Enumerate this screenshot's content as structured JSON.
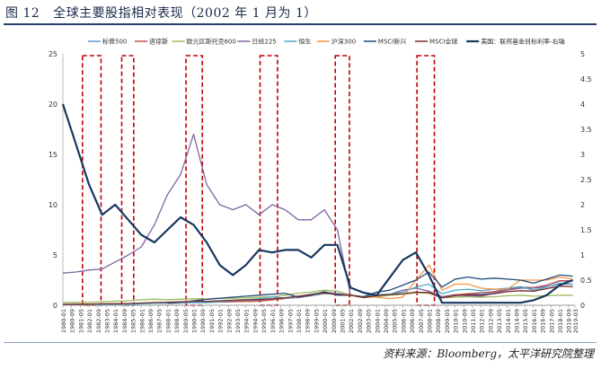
{
  "header": {
    "figure_no": "图 12",
    "title": "全球主要股指相对表现（2002 年 1 月为 1）"
  },
  "source": "资料来源：Bloomberg，太平洋研究院整理",
  "chart_data": {
    "type": "line",
    "title": "全球主要股指相对表现（2002 年 1 月为 1）",
    "x": [
      "1980-01",
      "1981-01",
      "1982-01",
      "1983-01",
      "1984-01",
      "1985-01",
      "1986-01",
      "1987-01",
      "1988-01",
      "1989-01",
      "1990-01",
      "1991-01",
      "1992-01",
      "1993-01",
      "1994-01",
      "1995-01",
      "1996-01",
      "1997-01",
      "1998-01",
      "1999-01",
      "2000-01",
      "2001-01",
      "2002-01",
      "2003-01",
      "2004-01",
      "2005-01",
      "2006-01",
      "2007-01",
      "2008-01",
      "2009-01",
      "2010-01",
      "2011-01",
      "2012-01",
      "2013-01",
      "2014-01",
      "2015-01",
      "2016-01",
      "2017-01",
      "2018-01",
      "2019-01"
    ],
    "x_tick_labels": [
      "1980-01",
      "1980-09",
      "1981-05",
      "1982-01",
      "1982-09",
      "1983-05",
      "1984-01",
      "1984-09",
      "1985-05",
      "1986-01",
      "1986-09",
      "1987-05",
      "1988-01",
      "1988-09",
      "1989-05",
      "1990-01",
      "1990-09",
      "1991-05",
      "1992-01",
      "1992-09",
      "1993-05",
      "1994-01",
      "1994-09",
      "1995-05",
      "1996-01",
      "1996-09",
      "1997-05",
      "1998-01",
      "1998-09",
      "1999-05",
      "2000-01",
      "2000-09",
      "2001-05",
      "2002-01",
      "2002-09",
      "2003-05",
      "2004-01",
      "2004-09",
      "2005-05",
      "2006-01",
      "2006-09",
      "2007-05",
      "2008-01",
      "2008-09",
      "2009-05",
      "2010-01",
      "2010-09",
      "2011-05",
      "2012-01",
      "2012-09",
      "2013-05",
      "2014-01",
      "2014-09",
      "2015-05",
      "2016-01",
      "2016-09",
      "2017-05",
      "2018-01",
      "2018-09",
      "2019-03"
    ],
    "ylim": [
      0,
      25
    ],
    "y_ticks": [
      0,
      5,
      10,
      15,
      20,
      25
    ],
    "y2lim": [
      0,
      5
    ],
    "y2_ticks": [
      0,
      0.5,
      1,
      1.5,
      2,
      2.5,
      3,
      3.5,
      4,
      4.5,
      5
    ],
    "grid": false,
    "legend_position": "top",
    "series": [
      {
        "name": "标普500",
        "color": "#5b9bd5",
        "axis": "left",
        "values": [
          0.09,
          0.1,
          0.1,
          0.13,
          0.13,
          0.16,
          0.2,
          0.24,
          0.24,
          0.27,
          0.3,
          0.3,
          0.38,
          0.4,
          0.42,
          0.42,
          0.56,
          0.68,
          0.88,
          1.1,
          1.3,
          1.17,
          1.0,
          0.78,
          1.0,
          1.05,
          1.1,
          1.24,
          1.25,
          0.75,
          1.0,
          1.1,
          1.1,
          1.3,
          1.6,
          1.8,
          1.75,
          2.0,
          2.4,
          2.4
        ]
      },
      {
        "name": "道琼斯",
        "color": "#c0504d",
        "axis": "left",
        "values": [
          0.08,
          0.09,
          0.09,
          0.11,
          0.12,
          0.12,
          0.15,
          0.19,
          0.2,
          0.22,
          0.27,
          0.28,
          0.32,
          0.35,
          0.38,
          0.4,
          0.53,
          0.67,
          0.78,
          0.95,
          1.15,
          1.07,
          1.0,
          0.83,
          1.05,
          1.07,
          1.1,
          1.25,
          1.3,
          0.85,
          1.05,
          1.15,
          1.25,
          1.35,
          1.65,
          1.75,
          1.75,
          2.0,
          2.45,
          2.45
        ]
      },
      {
        "name": "欧元区斯托克600",
        "color": "#9bbb59",
        "axis": "left",
        "values": [
          0.3,
          0.3,
          0.3,
          0.35,
          0.4,
          0.45,
          0.55,
          0.6,
          0.55,
          0.6,
          0.65,
          0.62,
          0.7,
          0.7,
          0.75,
          0.8,
          0.85,
          1.0,
          1.2,
          1.3,
          1.5,
          1.4,
          1.0,
          0.75,
          0.85,
          1.0,
          1.1,
          1.25,
          1.2,
          0.72,
          0.8,
          0.85,
          0.8,
          0.85,
          0.95,
          1.0,
          0.9,
          0.95,
          1.0,
          1.0
        ]
      },
      {
        "name": "日经225",
        "color": "#8064a2",
        "axis": "left",
        "values": [
          3.2,
          3.3,
          3.5,
          3.6,
          4.3,
          5.0,
          5.8,
          8.0,
          11.0,
          13.0,
          17.0,
          12.0,
          10.0,
          9.5,
          10.0,
          9.0,
          10.0,
          9.5,
          8.5,
          8.5,
          9.5,
          7.5,
          1.0,
          0.8,
          1.05,
          1.1,
          1.5,
          1.7,
          1.4,
          0.85,
          1.0,
          0.95,
          0.9,
          1.2,
          1.5,
          1.7,
          1.7,
          1.85,
          2.1,
          2.1
        ]
      },
      {
        "name": "恒生",
        "color": "#4bacc6",
        "axis": "left",
        "values": [
          0.08,
          0.1,
          0.1,
          0.08,
          0.1,
          0.11,
          0.13,
          0.2,
          0.2,
          0.24,
          0.27,
          0.26,
          0.35,
          0.45,
          0.55,
          0.65,
          0.85,
          0.7,
          0.8,
          0.95,
          1.2,
          1.05,
          1.0,
          0.8,
          1.05,
          1.1,
          1.3,
          1.8,
          2.1,
          1.15,
          1.5,
          1.6,
          1.45,
          1.6,
          1.7,
          1.85,
          1.5,
          1.8,
          2.2,
          2.1
        ]
      },
      {
        "name": "沪深300",
        "color": "#f79646",
        "axis": "left",
        "values": [
          null,
          null,
          null,
          null,
          null,
          null,
          null,
          null,
          null,
          null,
          null,
          null,
          null,
          null,
          null,
          null,
          null,
          null,
          null,
          null,
          null,
          null,
          1.0,
          0.85,
          0.8,
          0.65,
          0.8,
          2.5,
          4.0,
          1.5,
          2.1,
          2.1,
          1.7,
          1.6,
          1.6,
          2.5,
          2.5,
          2.5,
          2.8,
          2.6
        ]
      },
      {
        "name": "MSCI新兴",
        "color": "#1f497d",
        "axis": "left",
        "values": [
          null,
          null,
          null,
          null,
          null,
          null,
          null,
          null,
          0.2,
          0.3,
          0.45,
          0.6,
          0.7,
          0.8,
          0.9,
          1.0,
          1.1,
          1.2,
          0.8,
          1.0,
          1.35,
          1.0,
          1.0,
          0.85,
          1.3,
          1.5,
          2.0,
          2.5,
          3.3,
          1.8,
          2.6,
          2.8,
          2.6,
          2.7,
          2.6,
          2.5,
          2.2,
          2.6,
          3.0,
          2.9
        ]
      },
      {
        "name": "MSCI全球",
        "color": "#7b2c2c",
        "axis": "left",
        "values": [
          0.1,
          0.12,
          0.12,
          0.14,
          0.15,
          0.18,
          0.22,
          0.28,
          0.3,
          0.34,
          0.4,
          0.38,
          0.45,
          0.5,
          0.55,
          0.55,
          0.65,
          0.75,
          0.9,
          1.05,
          1.25,
          1.1,
          1.0,
          0.78,
          0.95,
          1.05,
          1.15,
          1.3,
          1.25,
          0.75,
          0.95,
          1.05,
          1.0,
          1.15,
          1.35,
          1.45,
          1.4,
          1.65,
          1.9,
          1.85
        ]
      },
      {
        "name": "美国：联邦基金目标利率-右轴",
        "color": "#17375e",
        "axis": "right",
        "values": [
          4.0,
          3.2,
          2.4,
          1.8,
          2.0,
          1.7,
          1.4,
          1.25,
          1.5,
          1.75,
          1.6,
          1.25,
          0.8,
          0.6,
          0.8,
          1.1,
          1.05,
          1.1,
          1.1,
          0.95,
          1.2,
          1.2,
          0.35,
          0.25,
          0.2,
          0.55,
          0.9,
          1.05,
          0.6,
          0.05,
          0.05,
          0.05,
          0.05,
          0.05,
          0.05,
          0.05,
          0.1,
          0.2,
          0.4,
          0.5
        ]
      }
    ],
    "shaded_periods": [
      [
        "1981-07",
        "1982-12"
      ],
      [
        "1984-07",
        "1985-06"
      ],
      [
        "1989-06",
        "1990-09"
      ],
      [
        "1995-02",
        "1996-06"
      ],
      [
        "2000-11",
        "2001-12"
      ],
      [
        "2007-02",
        "2008-06"
      ]
    ]
  }
}
